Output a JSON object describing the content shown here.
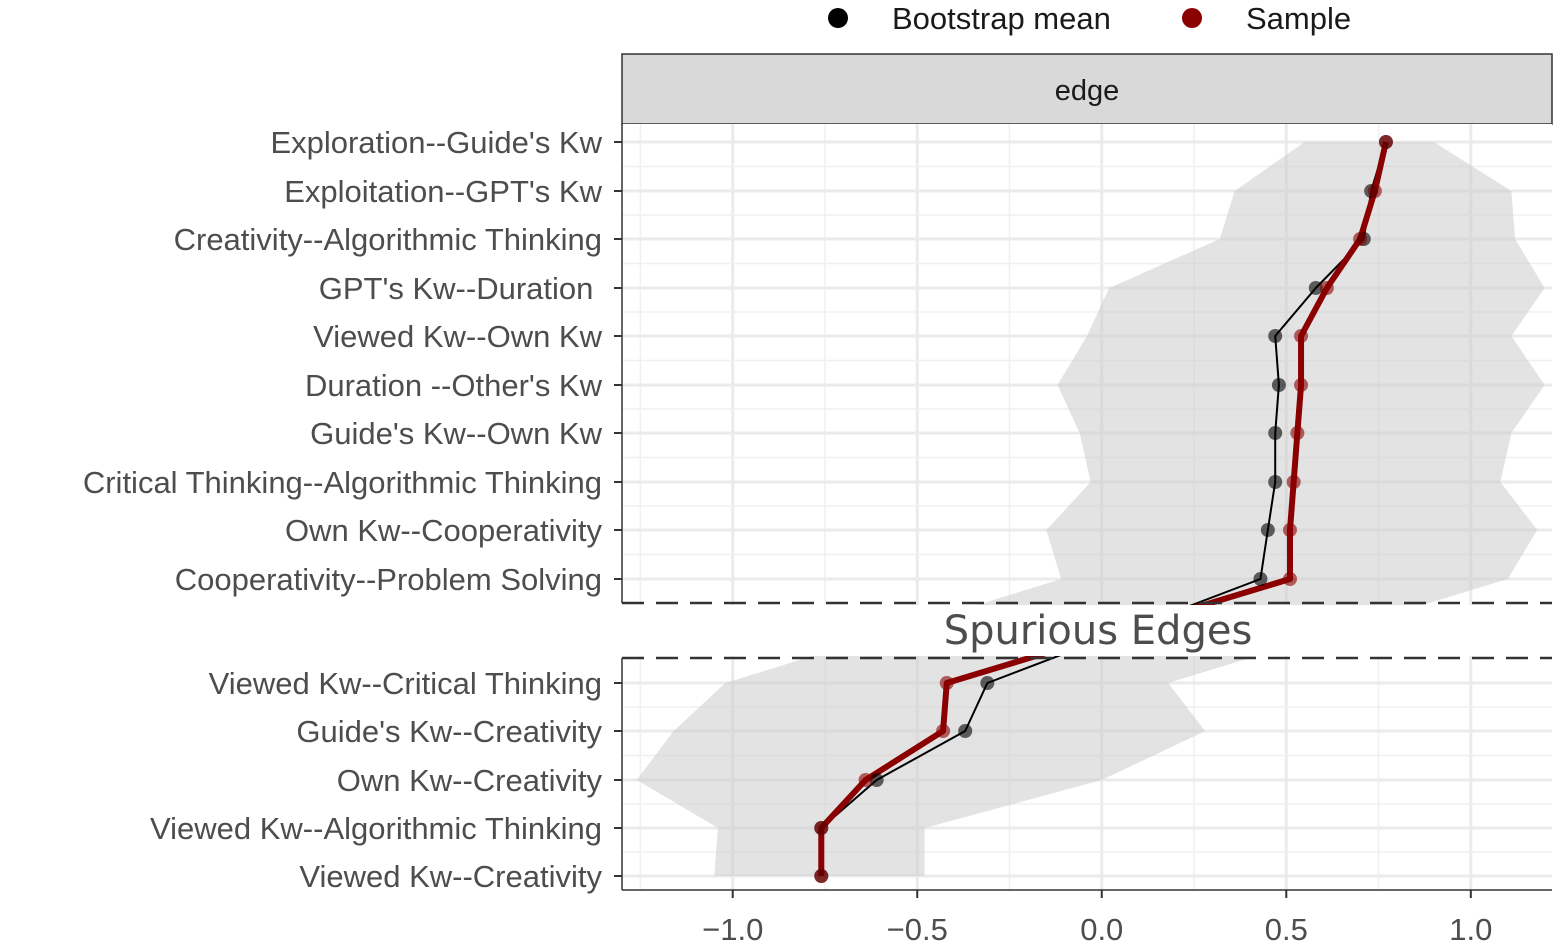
{
  "chart_data": {
    "type": "line",
    "strip_label": "edge",
    "annotation": "Spurious Edges",
    "legend": {
      "position": "top",
      "entries": [
        {
          "label": "Bootstrap mean",
          "color": "#000000"
        },
        {
          "label": "Sample",
          "color": "#8b0000"
        }
      ]
    },
    "xlim": [
      -1.3,
      1.22
    ],
    "x_ticks": [
      -1.0,
      -0.5,
      0.0,
      0.5,
      1.0
    ],
    "x_tick_labels": [
      "−1.0",
      "−0.5",
      "0.0",
      "0.5",
      "1.0"
    ],
    "band_color": "#cccccc",
    "categories": [
      "Exploration--Guide's Kw",
      "Exploitation--GPT's Kw",
      "Creativity--Algorithmic Thinking",
      "GPT's Kw--Duration ",
      "Viewed Kw--Own Kw",
      "Duration --Other's Kw",
      "Guide's Kw--Own Kw",
      "Critical Thinking--Algorithmic Thinking",
      "Own Kw--Cooperativity",
      "Cooperativity--Problem Solving",
      "Viewed Kw--Critical Thinking",
      "Guide's Kw--Creativity",
      "Own Kw--Creativity",
      "Viewed Kw--Algorithmic Thinking",
      "Viewed Kw--Creativity"
    ],
    "series": [
      {
        "name": "Bootstrap mean",
        "color": "#000000",
        "values": [
          0.77,
          0.73,
          0.71,
          0.58,
          0.47,
          0.48,
          0.47,
          0.47,
          0.45,
          0.43,
          -0.31,
          -0.37,
          -0.61,
          -0.76,
          -0.76
        ]
      },
      {
        "name": "Sample",
        "color": "#8b0000",
        "values": [
          0.77,
          0.74,
          0.7,
          0.61,
          0.54,
          0.54,
          0.53,
          0.52,
          0.51,
          0.51,
          -0.42,
          -0.43,
          -0.64,
          -0.76,
          -0.76
        ]
      }
    ],
    "band": {
      "lower": [
        0.55,
        0.36,
        0.32,
        0.02,
        -0.04,
        -0.12,
        -0.06,
        -0.03,
        -0.15,
        -0.11,
        -1.02,
        -1.16,
        -1.26,
        -1.04,
        -1.05
      ],
      "upper": [
        0.9,
        1.11,
        1.12,
        1.2,
        1.11,
        1.2,
        1.11,
        1.08,
        1.18,
        1.1,
        0.18,
        0.28,
        0.0,
        -0.48,
        -0.48
      ]
    }
  }
}
